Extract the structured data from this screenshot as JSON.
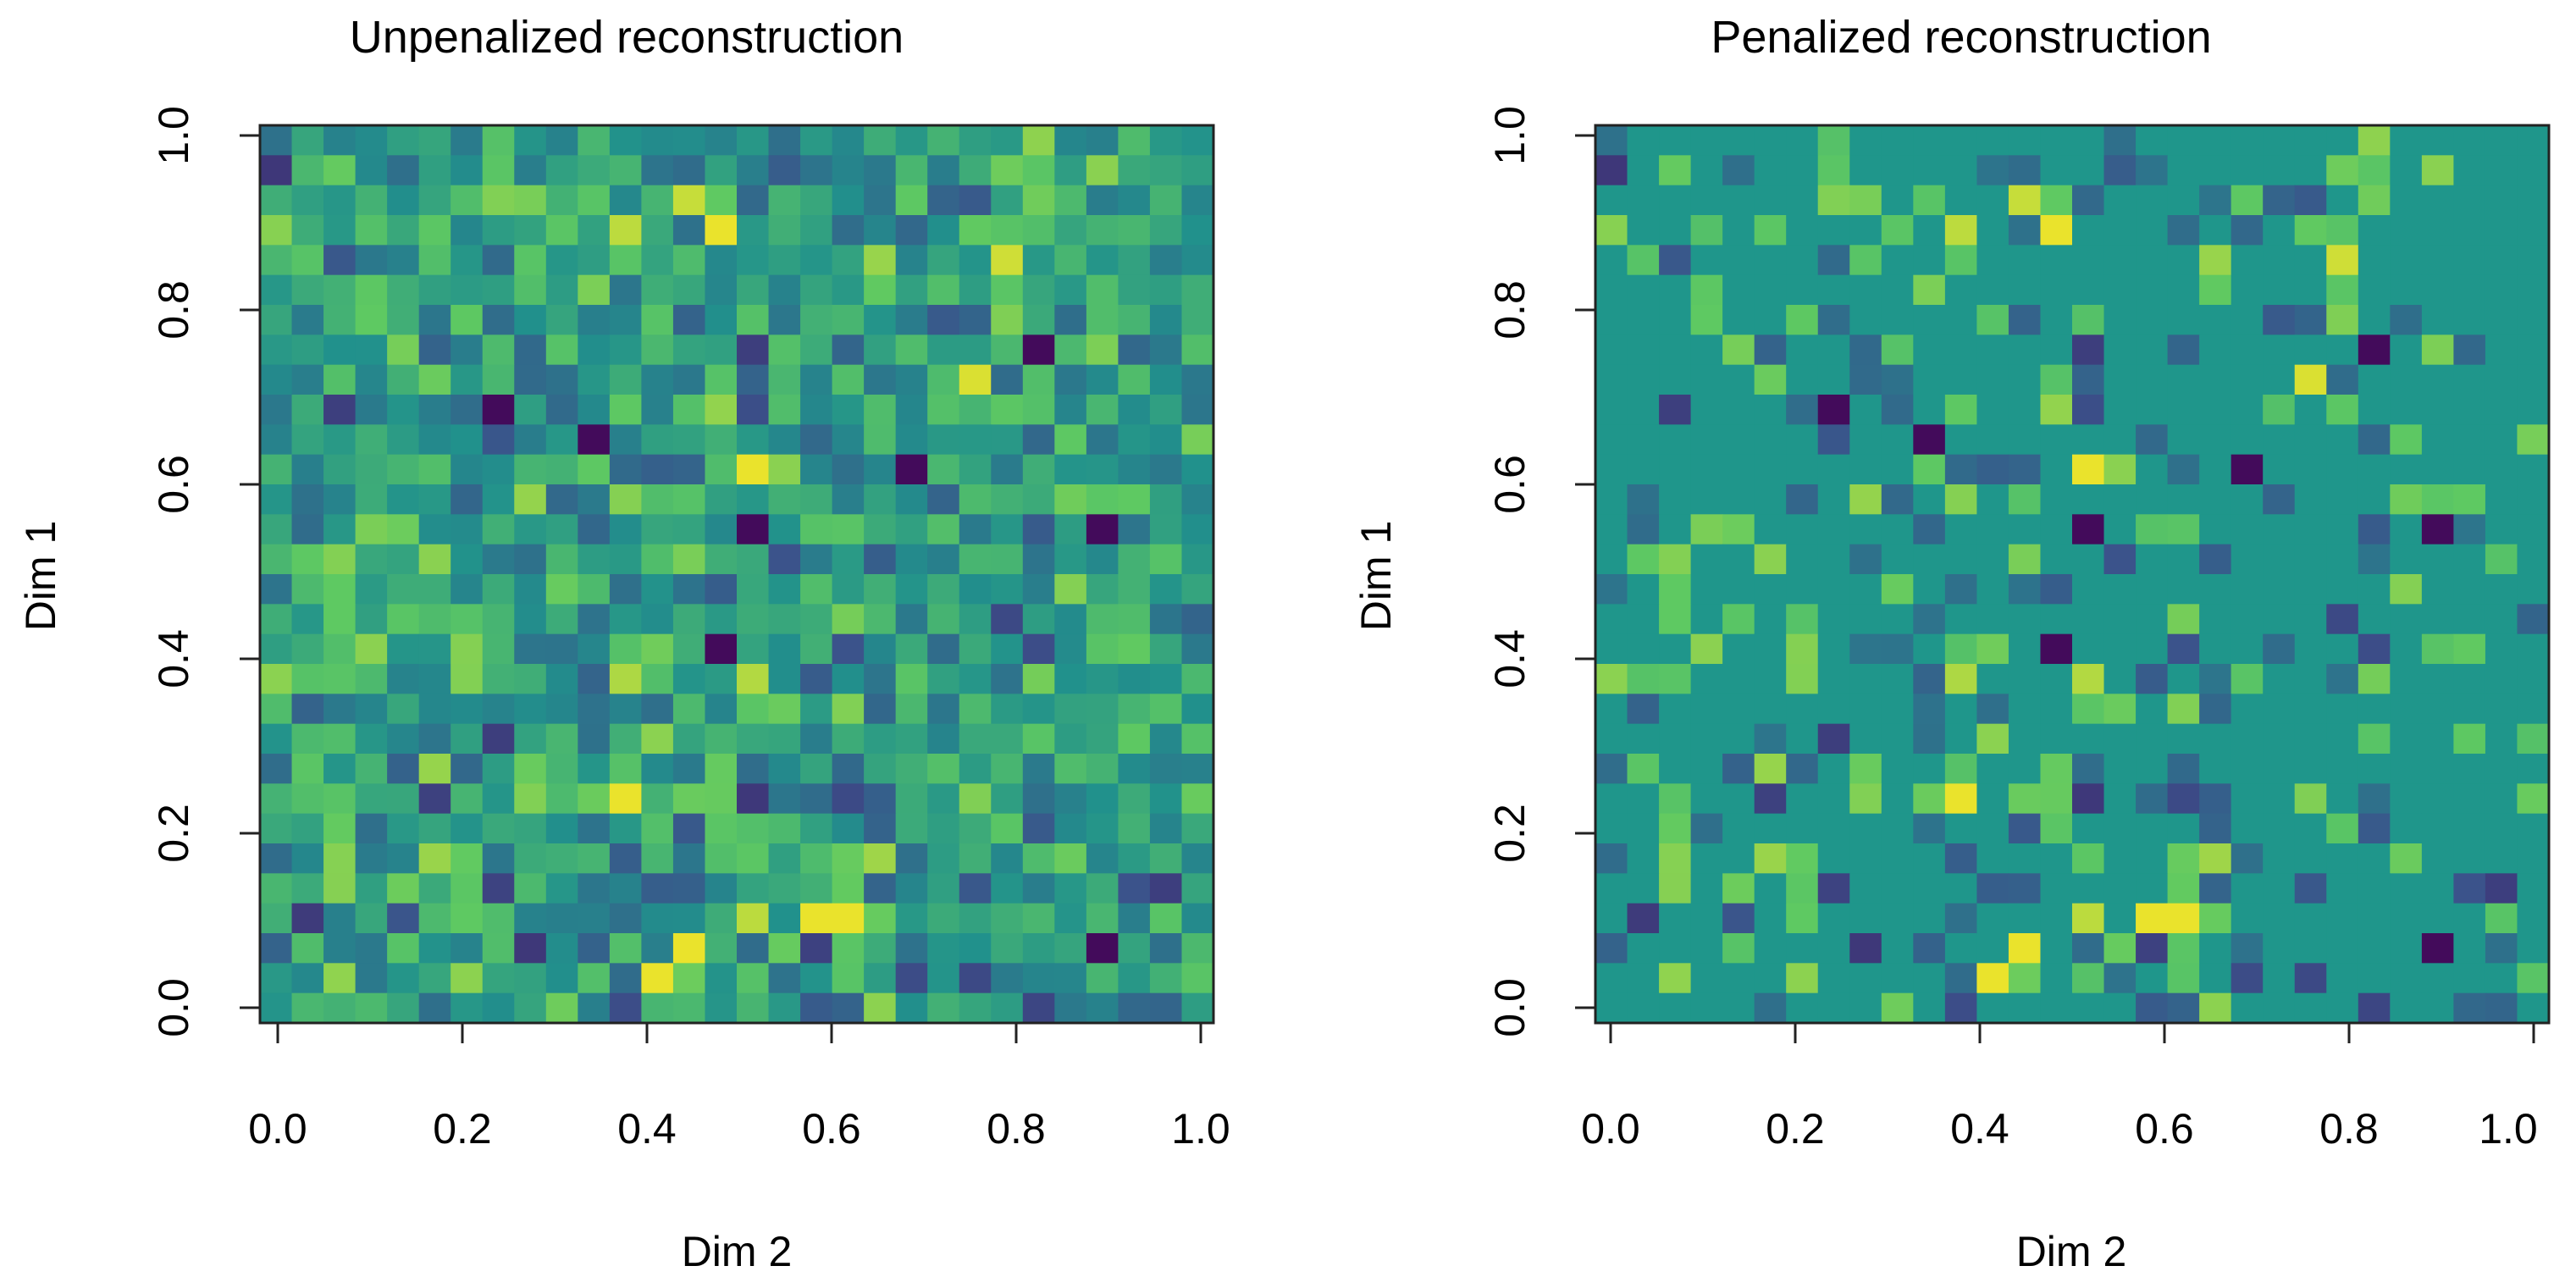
{
  "chart_data": [
    {
      "type": "heatmap",
      "title": "Unpenalized reconstruction",
      "xlabel": "Dim 2",
      "ylabel": "Dim 1",
      "xlim": [
        0.0,
        1.0
      ],
      "ylim": [
        0.0,
        1.0
      ],
      "x_ticks": [
        "0.0",
        "0.2",
        "0.4",
        "0.6",
        "0.8",
        "1.0"
      ],
      "y_ticks": [
        "0.0",
        "0.2",
        "0.4",
        "0.6",
        "0.8",
        "1.0"
      ],
      "grid": false,
      "legend": "none",
      "color_scale": "viridis",
      "rows": 30,
      "cols": 30,
      "seed": 11,
      "penalized": false
    },
    {
      "type": "heatmap",
      "title": "Penalized reconstruction",
      "xlabel": "Dim 2",
      "ylabel": "Dim 1",
      "xlim": [
        0.0,
        1.0
      ],
      "ylim": [
        0.0,
        1.0
      ],
      "x_ticks": [
        "0.0",
        "0.2",
        "0.4",
        "0.6",
        "0.8",
        "1.0"
      ],
      "y_ticks": [
        "0.0",
        "0.2",
        "0.4",
        "0.6",
        "0.8",
        "1.0"
      ],
      "grid": false,
      "legend": "none",
      "color_scale": "viridis",
      "rows": 30,
      "cols": 30,
      "seed": 11,
      "penalized": true
    }
  ],
  "colors": {
    "dark": "#440154",
    "teal": "#21908c",
    "green": "#35b779",
    "yellow": "#fde725",
    "penalized_background": "#1f968b"
  }
}
